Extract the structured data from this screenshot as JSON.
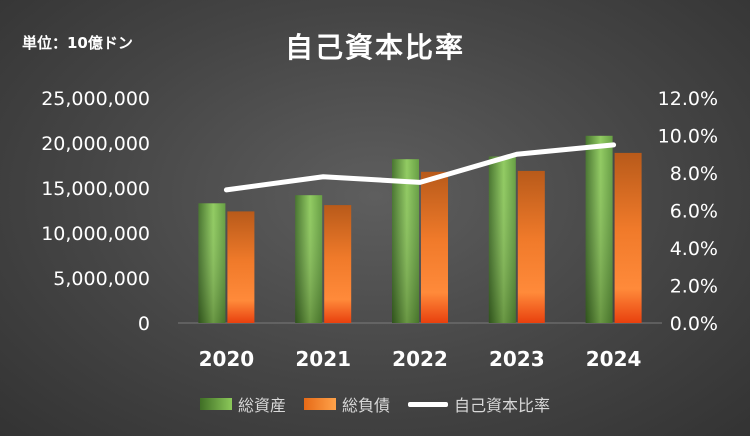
{
  "header": {
    "unit_label": "単位：10億ドン",
    "title": "自己資本比率"
  },
  "legend": {
    "assets": "総資産",
    "liabilities": "総負債",
    "ratio": "自己資本比率"
  },
  "colors": {
    "assets_dark": "#3f6e25",
    "assets_light": "#8cc95a",
    "liab_dark": "#e04a0f",
    "liab_light": "#ff9a45",
    "ratio_line": "#ffffff"
  },
  "chart_data": {
    "type": "bar",
    "title": "自己資本比率",
    "categories": [
      "2020",
      "2021",
      "2022",
      "2023",
      "2024"
    ],
    "series": [
      {
        "name": "総資産",
        "values": [
          13300000,
          14200000,
          18200000,
          18500000,
          20800000
        ],
        "axis": "left",
        "kind": "bar"
      },
      {
        "name": "総負債",
        "values": [
          12400000,
          13100000,
          16800000,
          16900000,
          18900000
        ],
        "axis": "left",
        "kind": "bar"
      },
      {
        "name": "自己資本比率",
        "values": [
          7.1,
          7.8,
          7.5,
          9.0,
          9.5
        ],
        "axis": "right",
        "kind": "line"
      }
    ],
    "y_left": {
      "min": 0,
      "max": 25000000,
      "ticks": [
        "0",
        "5,000,000",
        "10,000,000",
        "15,000,000",
        "20,000,000",
        "25,000,000"
      ]
    },
    "y_right": {
      "min": 0,
      "max": 12,
      "ticks": [
        "0.0%",
        "2.0%",
        "4.0%",
        "6.0%",
        "8.0%",
        "10.0%",
        "12.0%"
      ]
    },
    "grid": false,
    "legend_position": "bottom"
  }
}
